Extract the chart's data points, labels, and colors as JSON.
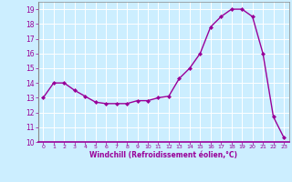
{
  "x": [
    0,
    1,
    2,
    3,
    4,
    5,
    6,
    7,
    8,
    9,
    10,
    11,
    12,
    13,
    14,
    15,
    16,
    17,
    18,
    19,
    20,
    21,
    22,
    23
  ],
  "y": [
    13.0,
    14.0,
    14.0,
    13.5,
    13.1,
    12.7,
    12.6,
    12.6,
    12.6,
    12.8,
    12.8,
    13.0,
    13.1,
    14.3,
    15.0,
    16.0,
    17.8,
    18.5,
    19.0,
    19.0,
    18.5,
    16.0,
    11.7,
    10.3
  ],
  "xlim": [
    -0.5,
    23.5
  ],
  "ylim": [
    10,
    19.5
  ],
  "yticks": [
    10,
    11,
    12,
    13,
    14,
    15,
    16,
    17,
    18,
    19
  ],
  "xticks": [
    0,
    1,
    2,
    3,
    4,
    5,
    6,
    7,
    8,
    9,
    10,
    11,
    12,
    13,
    14,
    15,
    16,
    17,
    18,
    19,
    20,
    21,
    22,
    23
  ],
  "xlabel": "Windchill (Refroidissement éolien,°C)",
  "line_color": "#990099",
  "marker": "D",
  "marker_size": 2.0,
  "bg_color": "#cceeff",
  "grid_color": "#ffffff",
  "tick_color": "#990099",
  "label_color": "#990099",
  "line_width": 1.0,
  "spine_color": "#888888"
}
